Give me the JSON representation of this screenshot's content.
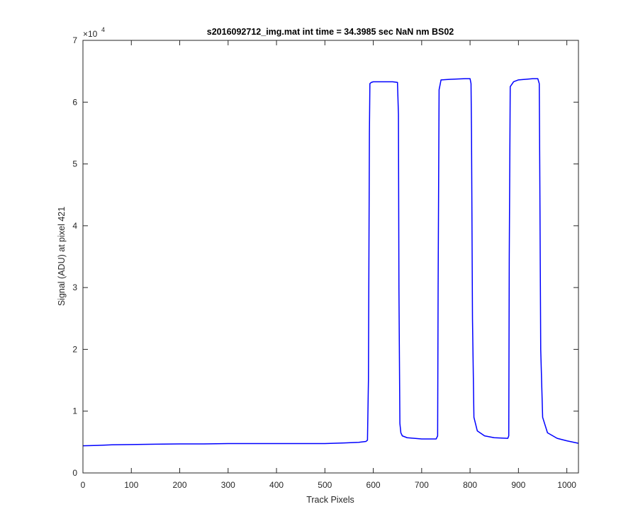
{
  "chart_data": {
    "type": "line",
    "title": "s2016092712_img.mat int time = 34.3985 sec  NaN nm BS02",
    "xlabel": "Track Pixels",
    "ylabel": "Signal (ADU) at pixel 421",
    "xlim": [
      0,
      1024
    ],
    "ylim": [
      0,
      70000
    ],
    "y_exponent_label": "×10",
    "y_exponent_power": "4",
    "xticks": [
      0,
      100,
      200,
      300,
      400,
      500,
      600,
      700,
      800,
      900,
      1000
    ],
    "xtick_labels": [
      "0",
      "100",
      "200",
      "300",
      "400",
      "500",
      "600",
      "700",
      "800",
      "900",
      "1000"
    ],
    "yticks": [
      0,
      10000,
      20000,
      30000,
      40000,
      50000,
      60000,
      70000
    ],
    "ytick_labels": [
      "0",
      "1",
      "2",
      "3",
      "4",
      "5",
      "6",
      "7"
    ],
    "grid": false,
    "line_color": "#0000ff",
    "series": [
      {
        "x": [
          0,
          30,
          60,
          100,
          150,
          200,
          250,
          300,
          350,
          400,
          450,
          500,
          540,
          570,
          585,
          588,
          590,
          592,
          593,
          596,
          600,
          620,
          640,
          650,
          652,
          653,
          655,
          657,
          660,
          670,
          700,
          730,
          733,
          734,
          736,
          740,
          760,
          790,
          800,
          802,
          803,
          805,
          808,
          815,
          830,
          850,
          878,
          880,
          881,
          883,
          890,
          900,
          930,
          940,
          943,
          944,
          946,
          950,
          960,
          980,
          1000,
          1024
        ],
        "y": [
          4400,
          4450,
          4550,
          4600,
          4650,
          4700,
          4700,
          4750,
          4750,
          4750,
          4750,
          4750,
          4850,
          4950,
          5100,
          5300,
          15000,
          55000,
          63000,
          63200,
          63300,
          63300,
          63300,
          63200,
          58000,
          30000,
          8000,
          6500,
          6000,
          5700,
          5500,
          5500,
          6000,
          30000,
          62000,
          63600,
          63700,
          63800,
          63800,
          63000,
          55000,
          25000,
          9000,
          6800,
          6000,
          5700,
          5600,
          6000,
          35000,
          62500,
          63300,
          63600,
          63800,
          63800,
          63000,
          50000,
          20000,
          9000,
          6500,
          5600,
          5200,
          4800
        ]
      }
    ]
  }
}
